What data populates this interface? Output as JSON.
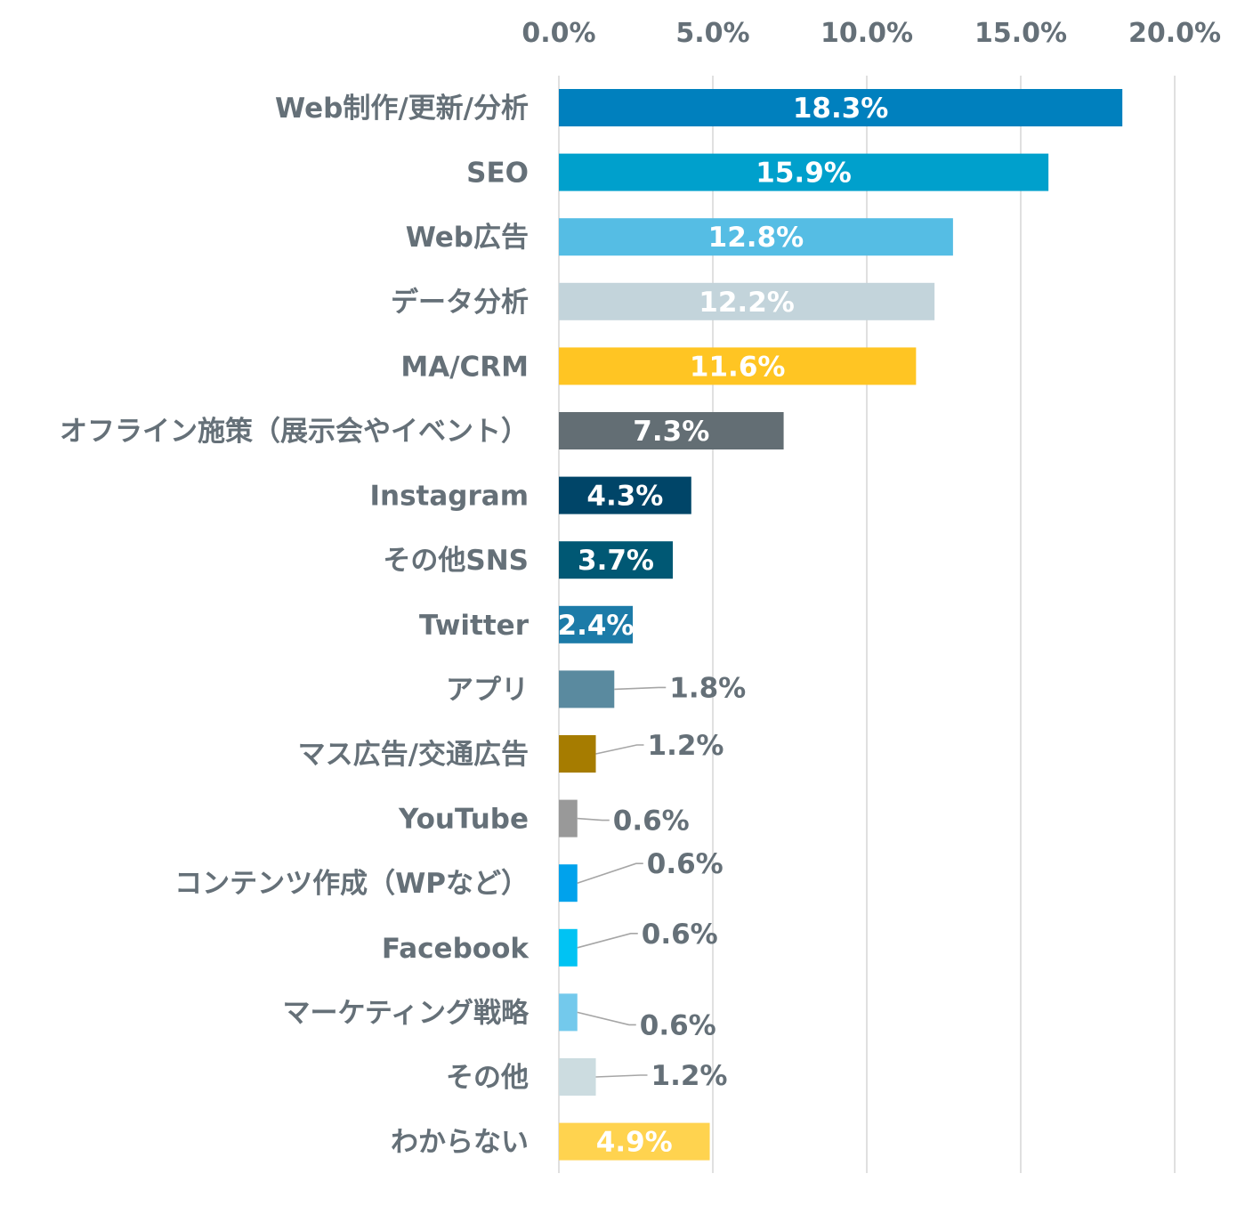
{
  "chart_data": {
    "type": "bar",
    "orientation": "horizontal",
    "title": "",
    "xlabel": "",
    "ylabel": "",
    "xlim": [
      0,
      20
    ],
    "grid": true,
    "x_ticks": [
      "0.0%",
      "5.0%",
      "10.0%",
      "15.0%",
      "20.0%"
    ],
    "x_tick_values": [
      0,
      5,
      10,
      15,
      20
    ],
    "axis_position": "top",
    "categories": [
      "Web制作/更新/分析",
      "SEO",
      "Web広告",
      "データ分析",
      "MA/CRM",
      "オフライン施策（展示会やイベント）",
      "Instagram",
      "その他SNS",
      "Twitter",
      "アプリ",
      "マス広告/交通広告",
      "YouTube",
      "コンテンツ作成（WPなど）",
      "Facebook",
      "マーケティング戦略",
      "その他",
      "わからない"
    ],
    "values": [
      18.3,
      15.9,
      12.8,
      12.2,
      11.6,
      7.3,
      4.3,
      3.7,
      2.4,
      1.8,
      1.2,
      0.6,
      0.6,
      0.6,
      0.6,
      1.2,
      4.9
    ],
    "data_labels": [
      "18.3%",
      "15.9%",
      "12.8%",
      "12.2%",
      "11.6%",
      "7.3%",
      "4.3%",
      "3.7%",
      "2.4%",
      "1.8%",
      "1.2%",
      "0.6%",
      "0.6%",
      "0.6%",
      "0.6%",
      "1.2%",
      "4.9%"
    ],
    "label_placement": [
      "inside",
      "inside",
      "inside",
      "inside",
      "inside",
      "inside",
      "inside",
      "inside",
      "inside",
      "outside",
      "outside",
      "outside",
      "outside",
      "outside",
      "outside",
      "outside",
      "inside"
    ],
    "colors": [
      "#0080BE",
      "#00A0CC",
      "#55BDE4",
      "#C3D4DB",
      "#FFC523",
      "#636E74",
      "#004568",
      "#005874",
      "#1C7BA8",
      "#5A8A9F",
      "#A67C00",
      "#999999",
      "#00A2EC",
      "#00C3F3",
      "#73C9EC",
      "#CCDCE0",
      "#FFD34F"
    ]
  }
}
